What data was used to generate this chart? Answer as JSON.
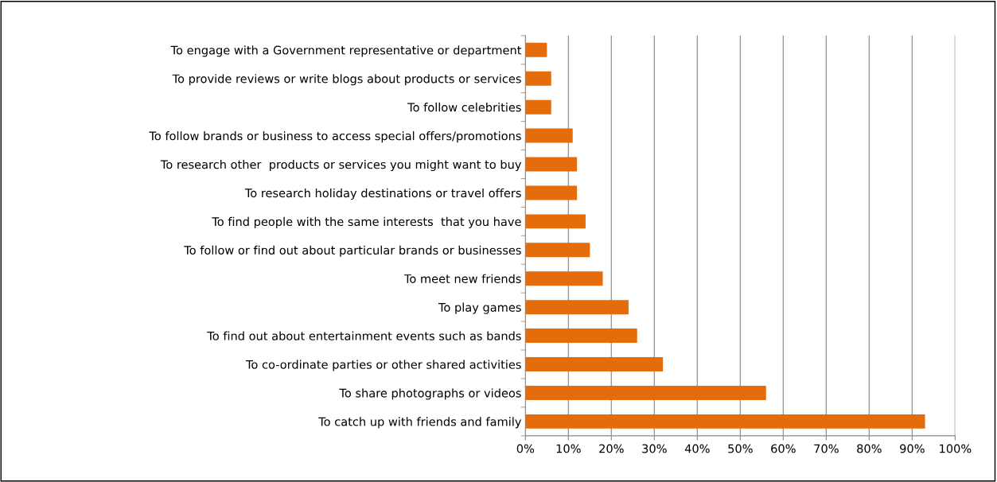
{
  "chart_data": {
    "type": "bar",
    "orientation": "horizontal",
    "categories": [
      "To engage with a Government representative or department",
      "To provide reviews or write blogs about products or services",
      "To follow celebrities",
      "To follow brands or business to access special offers/promotions",
      "To research other  products or services you might want to buy",
      "To research holiday destinations or travel offers",
      "To find people with the same interests  that you have",
      "To follow or find out about particular brands or businesses",
      "To meet new friends",
      "To play games",
      "To find out about entertainment events such as bands",
      "To co-ordinate parties or other shared activities",
      "To share photographs or videos",
      "To catch up with friends and family"
    ],
    "values": [
      5,
      6,
      6,
      11,
      12,
      12,
      14,
      15,
      18,
      24,
      26,
      32,
      56,
      93
    ],
    "color": "#e46c0a",
    "xlim": [
      0,
      100
    ],
    "xticks": [
      {
        "value": 0,
        "label": "0%"
      },
      {
        "value": 10,
        "label": "10%"
      },
      {
        "value": 20,
        "label": "20%"
      },
      {
        "value": 30,
        "label": "30%"
      },
      {
        "value": 40,
        "label": "40%"
      },
      {
        "value": 50,
        "label": "50%"
      },
      {
        "value": 60,
        "label": "60%"
      },
      {
        "value": 70,
        "label": "70%"
      },
      {
        "value": 80,
        "label": "80%"
      },
      {
        "value": 90,
        "label": "90%"
      },
      {
        "value": 100,
        "label": "100%"
      }
    ],
    "grid": "x"
  }
}
